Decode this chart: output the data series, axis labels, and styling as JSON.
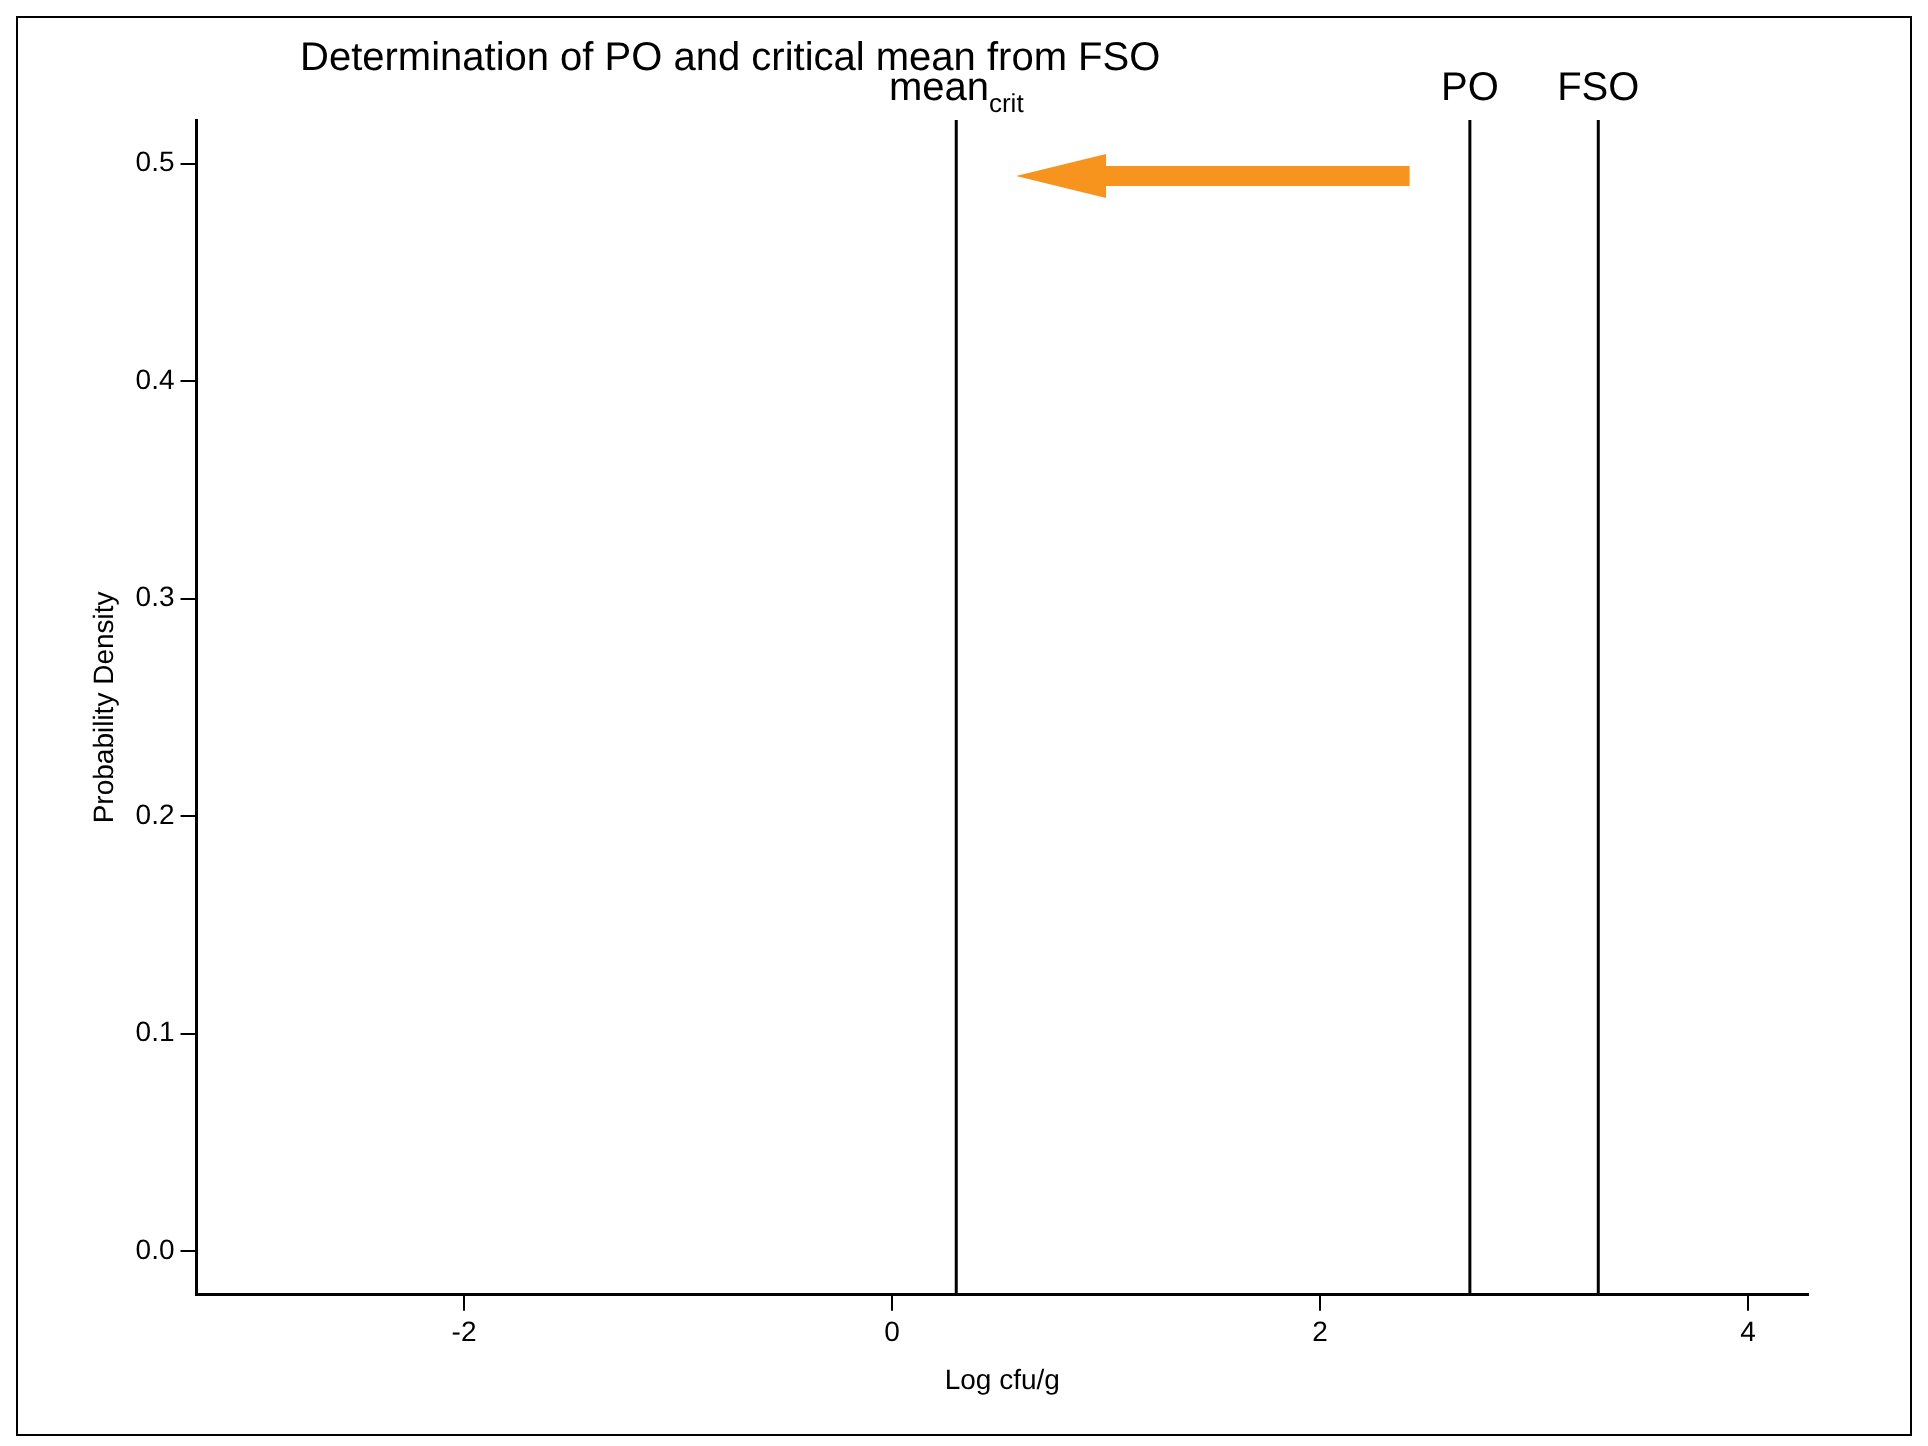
{
  "chart_data": {
    "type": "line",
    "title": "Determination of PO and critical mean from FSO",
    "xlabel": "Log cfu/g",
    "ylabel": "Probability Density",
    "xlim": [
      -3.25,
      4.28
    ],
    "xticks": [
      -2,
      0,
      2,
      4
    ],
    "ylim": [
      -0.02,
      0.52
    ],
    "yticks": [
      {
        "value": 0,
        "label": "0.0"
      },
      {
        "value": 0.1,
        "label": "0.1"
      },
      {
        "value": 0.2,
        "label": "0.2"
      },
      {
        "value": 0.3,
        "label": "0.3"
      },
      {
        "value": 0.4,
        "label": "0.4"
      },
      {
        "value": 0.5,
        "label": "0.5"
      }
    ],
    "ref_lines": [
      {
        "axis": "x",
        "value": 0.3,
        "label": "mean$_{crit}$",
        "color": "#000000"
      },
      {
        "axis": "x",
        "value": 2.7,
        "label": "PO",
        "color": "#000000"
      },
      {
        "axis": "x",
        "value": 3.3,
        "label": "FSO",
        "color": "#000000"
      }
    ],
    "grid": false,
    "legend": false
  }
}
